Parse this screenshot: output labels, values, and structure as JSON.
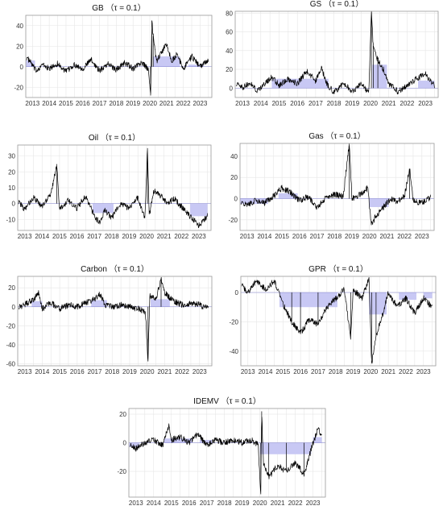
{
  "chart_data": [
    {
      "type": "line",
      "title": "GB （τ = 0.1）",
      "x_ticks": [
        "2013",
        "2014",
        "2015",
        "2016",
        "2017",
        "2018",
        "2019",
        "2020",
        "2021",
        "2022",
        "2023"
      ],
      "y_ticks": [
        40,
        20,
        0,
        -20
      ],
      "xlim": [
        2012.6,
        2023.7
      ],
      "ylim": [
        -30,
        50
      ],
      "keypoints": [
        [
          2012.65,
          9
        ],
        [
          2012.9,
          4
        ],
        [
          2013.2,
          -4
        ],
        [
          2013.6,
          2
        ],
        [
          2014.0,
          -2
        ],
        [
          2014.5,
          3
        ],
        [
          2015.0,
          -5
        ],
        [
          2015.5,
          2
        ],
        [
          2016.0,
          -2
        ],
        [
          2016.5,
          7
        ],
        [
          2017.0,
          -4
        ],
        [
          2017.5,
          3
        ],
        [
          2018.0,
          -3
        ],
        [
          2018.5,
          4
        ],
        [
          2019.0,
          -2
        ],
        [
          2019.5,
          4
        ],
        [
          2019.9,
          -2
        ],
        [
          2020.05,
          -28
        ],
        [
          2020.12,
          45
        ],
        [
          2020.2,
          30
        ],
        [
          2020.4,
          5
        ],
        [
          2020.7,
          14
        ],
        [
          2021.0,
          22
        ],
        [
          2021.3,
          5
        ],
        [
          2021.6,
          12
        ],
        [
          2022.0,
          -2
        ],
        [
          2022.5,
          10
        ],
        [
          2023.0,
          0
        ],
        [
          2023.5,
          7
        ]
      ],
      "shaded": [
        [
          2012.6,
          2013.15,
          6
        ],
        [
          2020.2,
          2021.8,
          10
        ],
        [
          2022.3,
          2023.2,
          2
        ]
      ]
    },
    {
      "type": "line",
      "title": "GS （τ = 0.1）",
      "x_ticks": [
        "2013",
        "2014",
        "2015",
        "2016",
        "2017",
        "2018",
        "2019",
        "2020",
        "2021",
        "2022",
        "2023"
      ],
      "y_ticks": [
        80,
        60,
        40,
        20,
        0
      ],
      "xlim": [
        2012.6,
        2023.7
      ],
      "ylim": [
        -10,
        82
      ],
      "keypoints": [
        [
          2012.65,
          5
        ],
        [
          2013.0,
          0
        ],
        [
          2013.4,
          6
        ],
        [
          2013.8,
          -3
        ],
        [
          2014.2,
          4
        ],
        [
          2014.6,
          12
        ],
        [
          2015.0,
          3
        ],
        [
          2015.5,
          10
        ],
        [
          2016.0,
          5
        ],
        [
          2016.5,
          18
        ],
        [
          2017.0,
          8
        ],
        [
          2017.3,
          22
        ],
        [
          2017.6,
          5
        ],
        [
          2018.0,
          -5
        ],
        [
          2018.5,
          5
        ],
        [
          2019.0,
          -3
        ],
        [
          2019.5,
          4
        ],
        [
          2019.9,
          -6
        ],
        [
          2020.05,
          80
        ],
        [
          2020.15,
          45
        ],
        [
          2020.4,
          30
        ],
        [
          2020.7,
          20
        ],
        [
          2021.0,
          5
        ],
        [
          2021.5,
          -4
        ],
        [
          2022.0,
          3
        ],
        [
          2022.5,
          10
        ],
        [
          2023.0,
          15
        ],
        [
          2023.5,
          3
        ]
      ],
      "shaded": [
        [
          2014.6,
          2017.7,
          10
        ],
        [
          2020.1,
          2020.9,
          25
        ],
        [
          2022.6,
          2023.5,
          8
        ]
      ]
    },
    {
      "type": "line",
      "title": "Oil （τ = 0.1）",
      "x_ticks": [
        "2013",
        "2014",
        "2015",
        "2016",
        "2017",
        "2018",
        "2019",
        "2020",
        "2021",
        "2022",
        "2023"
      ],
      "y_ticks": [
        30,
        20,
        10,
        0,
        -10
      ],
      "xlim": [
        2012.6,
        2023.7
      ],
      "ylim": [
        -17,
        37
      ],
      "keypoints": [
        [
          2012.65,
          1
        ],
        [
          2013.0,
          -4
        ],
        [
          2013.5,
          4
        ],
        [
          2014.0,
          -2
        ],
        [
          2014.5,
          6
        ],
        [
          2014.85,
          25
        ],
        [
          2015.0,
          -4
        ],
        [
          2015.5,
          2
        ],
        [
          2016.0,
          -3
        ],
        [
          2016.5,
          5
        ],
        [
          2017.0,
          -8
        ],
        [
          2017.3,
          -12
        ],
        [
          2017.6,
          -4
        ],
        [
          2018.0,
          -9
        ],
        [
          2018.5,
          0
        ],
        [
          2019.0,
          -3
        ],
        [
          2019.5,
          4
        ],
        [
          2019.9,
          -10
        ],
        [
          2020.05,
          35
        ],
        [
          2020.15,
          -8
        ],
        [
          2020.4,
          8
        ],
        [
          2020.8,
          5
        ],
        [
          2021.2,
          0
        ],
        [
          2021.6,
          3
        ],
        [
          2022.0,
          -2
        ],
        [
          2022.5,
          -8
        ],
        [
          2023.0,
          -14
        ],
        [
          2023.5,
          -8
        ]
      ],
      "shaded": [
        [
          2016.9,
          2018.1,
          -6
        ],
        [
          2022.5,
          2023.5,
          -8
        ]
      ]
    },
    {
      "type": "line",
      "title": "Gas （τ = 0.1）",
      "x_ticks": [
        "2013",
        "2014",
        "2015",
        "2016",
        "2017",
        "2018",
        "2019",
        "2020",
        "2021",
        "2022",
        "2023"
      ],
      "y_ticks": [
        40,
        20,
        0,
        -20
      ],
      "xlim": [
        2012.6,
        2023.7
      ],
      "ylim": [
        -30,
        52
      ],
      "keypoints": [
        [
          2012.65,
          -4
        ],
        [
          2013.0,
          -6
        ],
        [
          2013.5,
          -2
        ],
        [
          2014.0,
          -4
        ],
        [
          2014.5,
          2
        ],
        [
          2015.0,
          10
        ],
        [
          2015.5,
          6
        ],
        [
          2016.0,
          -2
        ],
        [
          2016.5,
          2
        ],
        [
          2017.0,
          -8
        ],
        [
          2017.5,
          0
        ],
        [
          2018.0,
          4
        ],
        [
          2018.5,
          2
        ],
        [
          2018.85,
          52
        ],
        [
          2019.0,
          0
        ],
        [
          2019.5,
          4
        ],
        [
          2019.9,
          10
        ],
        [
          2020.1,
          -24
        ],
        [
          2020.4,
          -16
        ],
        [
          2020.8,
          -8
        ],
        [
          2021.2,
          0
        ],
        [
          2021.6,
          -3
        ],
        [
          2022.0,
          2
        ],
        [
          2022.3,
          28
        ],
        [
          2022.5,
          -2
        ],
        [
          2023.0,
          -4
        ],
        [
          2023.5,
          1
        ]
      ],
      "shaded": [
        [
          2012.6,
          2014.2,
          -5
        ],
        [
          2014.8,
          2015.9,
          5
        ],
        [
          2020.0,
          2021.1,
          -8
        ]
      ]
    },
    {
      "type": "line",
      "title": "Carbon （τ = 0.1）",
      "x_ticks": [
        "2013",
        "2014",
        "2015",
        "2016",
        "2017",
        "2018",
        "2019",
        "2020",
        "2021",
        "2022",
        "2023"
      ],
      "y_ticks": [
        20,
        0,
        -20,
        -40,
        -60
      ],
      "xlim": [
        2012.6,
        2023.7
      ],
      "ylim": [
        -62,
        32
      ],
      "keypoints": [
        [
          2012.65,
          0
        ],
        [
          2013.0,
          2
        ],
        [
          2013.5,
          8
        ],
        [
          2013.8,
          14
        ],
        [
          2014.0,
          -2
        ],
        [
          2014.5,
          4
        ],
        [
          2015.0,
          -2
        ],
        [
          2015.5,
          2
        ],
        [
          2016.0,
          0
        ],
        [
          2016.5,
          4
        ],
        [
          2017.0,
          8
        ],
        [
          2017.3,
          14
        ],
        [
          2017.6,
          2
        ],
        [
          2018.0,
          0
        ],
        [
          2018.5,
          2
        ],
        [
          2019.0,
          0
        ],
        [
          2019.5,
          -2
        ],
        [
          2019.9,
          -6
        ],
        [
          2020.05,
          -57
        ],
        [
          2020.15,
          12
        ],
        [
          2020.5,
          8
        ],
        [
          2020.8,
          30
        ],
        [
          2021.0,
          15
        ],
        [
          2021.5,
          6
        ],
        [
          2022.0,
          2
        ],
        [
          2022.5,
          4
        ],
        [
          2023.0,
          2
        ],
        [
          2023.5,
          -2
        ]
      ],
      "shaded": [
        [
          2013.4,
          2014.0,
          6
        ],
        [
          2016.8,
          2017.7,
          7
        ],
        [
          2020.2,
          2021.3,
          8
        ]
      ]
    },
    {
      "type": "line",
      "title": "GPR （τ = 0.1）",
      "x_ticks": [
        "2013",
        "2014",
        "2015",
        "2016",
        "2017",
        "2018",
        "2019",
        "2020",
        "2021",
        "2022",
        "2023"
      ],
      "y_ticks": [
        0,
        -20,
        -40
      ],
      "xlim": [
        2012.6,
        2023.7
      ],
      "ylim": [
        -50,
        11
      ],
      "keypoints": [
        [
          2012.65,
          5
        ],
        [
          2013.0,
          0
        ],
        [
          2013.5,
          8
        ],
        [
          2014.0,
          2
        ],
        [
          2014.5,
          8
        ],
        [
          2015.0,
          -8
        ],
        [
          2015.5,
          -20
        ],
        [
          2016.0,
          -28
        ],
        [
          2016.5,
          -18
        ],
        [
          2017.0,
          -22
        ],
        [
          2017.5,
          -10
        ],
        [
          2018.0,
          -4
        ],
        [
          2018.5,
          2
        ],
        [
          2018.85,
          -32
        ],
        [
          2019.0,
          2
        ],
        [
          2019.5,
          -4
        ],
        [
          2019.9,
          10
        ],
        [
          2020.05,
          -48
        ],
        [
          2020.3,
          -30
        ],
        [
          2020.7,
          -14
        ],
        [
          2021.0,
          0
        ],
        [
          2021.5,
          -10
        ],
        [
          2022.0,
          -4
        ],
        [
          2022.5,
          -14
        ],
        [
          2023.0,
          -4
        ],
        [
          2023.5,
          -10
        ]
      ],
      "shaded": [
        [
          2014.8,
          2018.1,
          -10
        ],
        [
          2019.9,
          2020.9,
          -15
        ],
        [
          2021.6,
          2022.6,
          -5
        ],
        [
          2023.0,
          2023.5,
          -4
        ]
      ]
    },
    {
      "type": "line",
      "title": "IDEMV （τ = 0.1）",
      "x_ticks": [
        "2013",
        "2014",
        "2015",
        "2016",
        "2017",
        "2018",
        "2019",
        "2020",
        "2021",
        "2022",
        "2023"
      ],
      "y_ticks": [
        20,
        0,
        -20
      ],
      "xlim": [
        2012.6,
        2023.7
      ],
      "ylim": [
        -38,
        24
      ],
      "keypoints": [
        [
          2012.65,
          -2
        ],
        [
          2013.0,
          -4
        ],
        [
          2013.5,
          0
        ],
        [
          2014.0,
          2
        ],
        [
          2014.5,
          -2
        ],
        [
          2014.85,
          12
        ],
        [
          2015.0,
          2
        ],
        [
          2015.5,
          4
        ],
        [
          2016.0,
          0
        ],
        [
          2016.5,
          6
        ],
        [
          2017.0,
          -2
        ],
        [
          2017.5,
          2
        ],
        [
          2018.0,
          0
        ],
        [
          2018.5,
          2
        ],
        [
          2019.0,
          0
        ],
        [
          2019.5,
          2
        ],
        [
          2019.9,
          -1
        ],
        [
          2020.05,
          -36
        ],
        [
          2020.1,
          22
        ],
        [
          2020.2,
          -14
        ],
        [
          2020.5,
          -24
        ],
        [
          2021.0,
          -16
        ],
        [
          2021.5,
          -20
        ],
        [
          2022.0,
          -14
        ],
        [
          2022.5,
          -22
        ],
        [
          2023.0,
          0
        ],
        [
          2023.3,
          10
        ],
        [
          2023.5,
          4
        ]
      ],
      "shaded": [
        [
          2012.6,
          2013.2,
          -3
        ],
        [
          2014.6,
          2016.2,
          3
        ],
        [
          2016.6,
          2017.3,
          2
        ],
        [
          2020.0,
          2022.9,
          -8
        ],
        [
          2023.0,
          2023.5,
          4
        ]
      ]
    }
  ]
}
